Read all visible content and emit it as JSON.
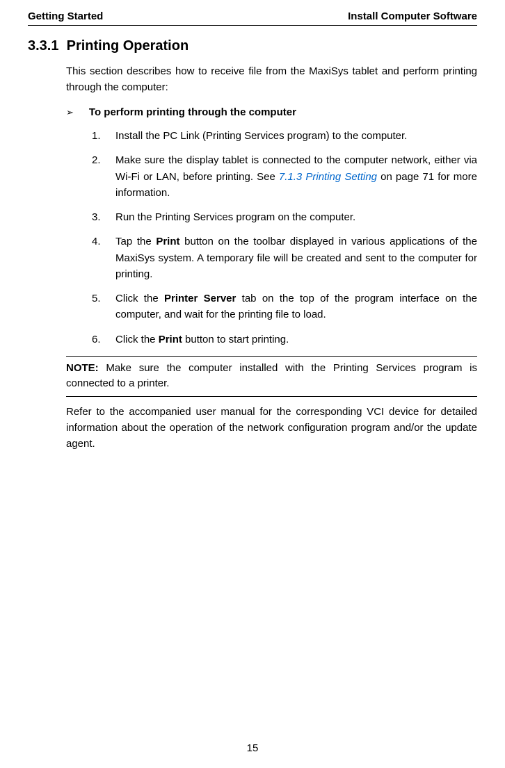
{
  "header": {
    "left": "Getting Started",
    "right": "Install Computer Software"
  },
  "section": {
    "number": "3.3.1",
    "title": "Printing Operation"
  },
  "intro": "This section describes how to receive file from the MaxiSys tablet and perform printing through the computer:",
  "subhead": {
    "bullet": "➢",
    "text": "To perform printing through the computer"
  },
  "steps": [
    {
      "num": "1.",
      "parts": [
        {
          "text": "Install the PC Link (Printing Services program) to the computer."
        }
      ]
    },
    {
      "num": "2.",
      "parts": [
        {
          "text": "Make sure the display tablet is connected to the computer network, either via Wi-Fi or LAN, before printing. See "
        },
        {
          "text": "7.1.3 Printing Setting",
          "link": true
        },
        {
          "text": " on page 71 for more information."
        }
      ]
    },
    {
      "num": "3.",
      "parts": [
        {
          "text": "Run the Printing Services program on the computer."
        }
      ]
    },
    {
      "num": "4.",
      "parts": [
        {
          "text": "Tap the "
        },
        {
          "text": "Print",
          "bold": true
        },
        {
          "text": " button on the toolbar displayed in various applications of the MaxiSys system. A temporary file will be created and sent to the computer for printing."
        }
      ]
    },
    {
      "num": "5.",
      "parts": [
        {
          "text": "Click the "
        },
        {
          "text": "Printer Server",
          "bold": true
        },
        {
          "text": " tab on the top of the program interface on the computer, and wait for the printing file to load."
        }
      ]
    },
    {
      "num": "6.",
      "parts": [
        {
          "text": "Click the "
        },
        {
          "text": "Print",
          "bold": true
        },
        {
          "text": " button to start printing."
        }
      ]
    }
  ],
  "note": {
    "label": "NOTE:",
    "text": " Make sure the computer installed with the Printing Services program is connected to a printer."
  },
  "closing": "Refer to the accompanied user manual for the corresponding VCI device for detailed information about the operation of the network configuration program and/or the update agent.",
  "pageNumber": "15"
}
